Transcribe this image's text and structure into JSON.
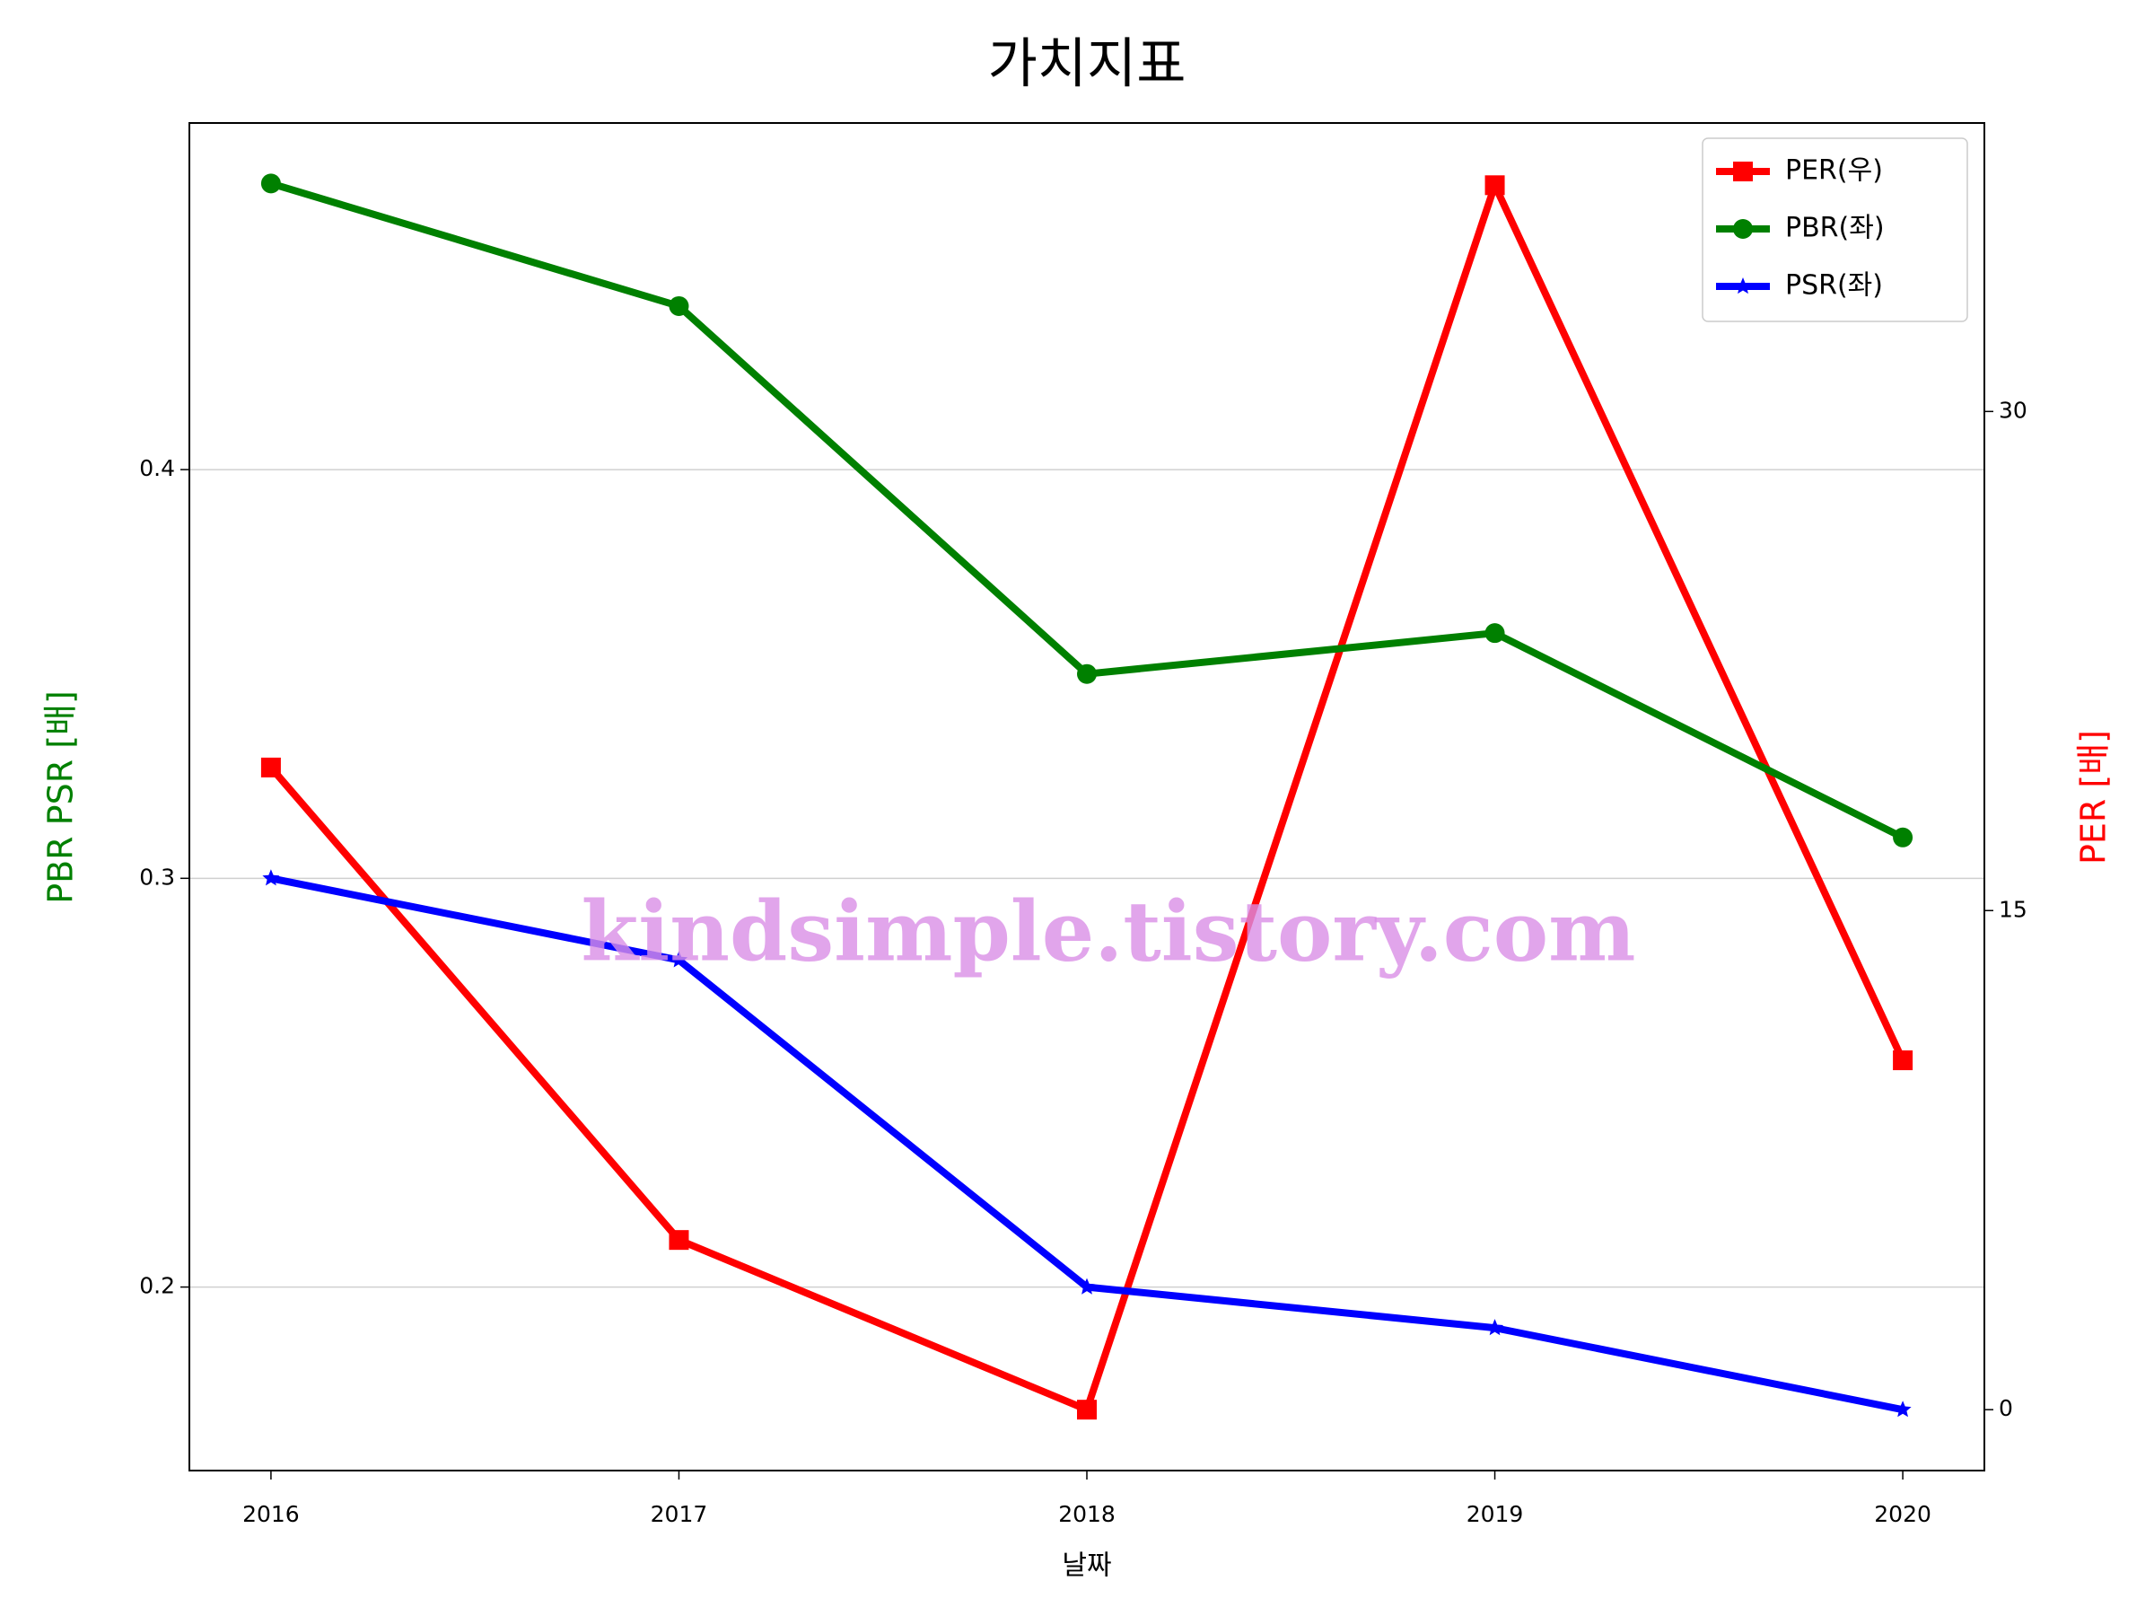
{
  "chart_data": {
    "type": "line",
    "title": "가치지표",
    "x_label": "날짜",
    "y_label": "PBR PSR [배]",
    "y2_label": "PER [배]",
    "y_label_color": "green",
    "y2_label_color": "red",
    "x": [
      2016,
      2017,
      2018,
      2019,
      2020
    ],
    "xlim": [
      2015.8,
      2020.2
    ],
    "xticks": [
      2016,
      2017,
      2018,
      2019,
      2020
    ],
    "ylim": [
      0.1551,
      0.4848
    ],
    "yticks": [
      0.2,
      0.3,
      0.4
    ],
    "y2lim": [
      -1.83,
      38.67
    ],
    "y2ticks": [
      0,
      15,
      30
    ],
    "grid": true,
    "legend": "upper right",
    "annotation": "kindsimple.tistory.com",
    "series": [
      {
        "name": "PER(우)",
        "color": "red",
        "marker": "square",
        "axis": "y2",
        "values": [
          19.3,
          5.1,
          0,
          36.8,
          10.5
        ]
      },
      {
        "name": "PBR(좌)",
        "color": "green",
        "marker": "circle",
        "values": [
          0.47,
          0.44,
          0.35,
          0.36,
          0.31
        ]
      },
      {
        "name": "PSR(좌)",
        "color": "blue",
        "marker": "star",
        "values": [
          0.3,
          0.28,
          0.2,
          0.19,
          0.17
        ]
      }
    ]
  }
}
